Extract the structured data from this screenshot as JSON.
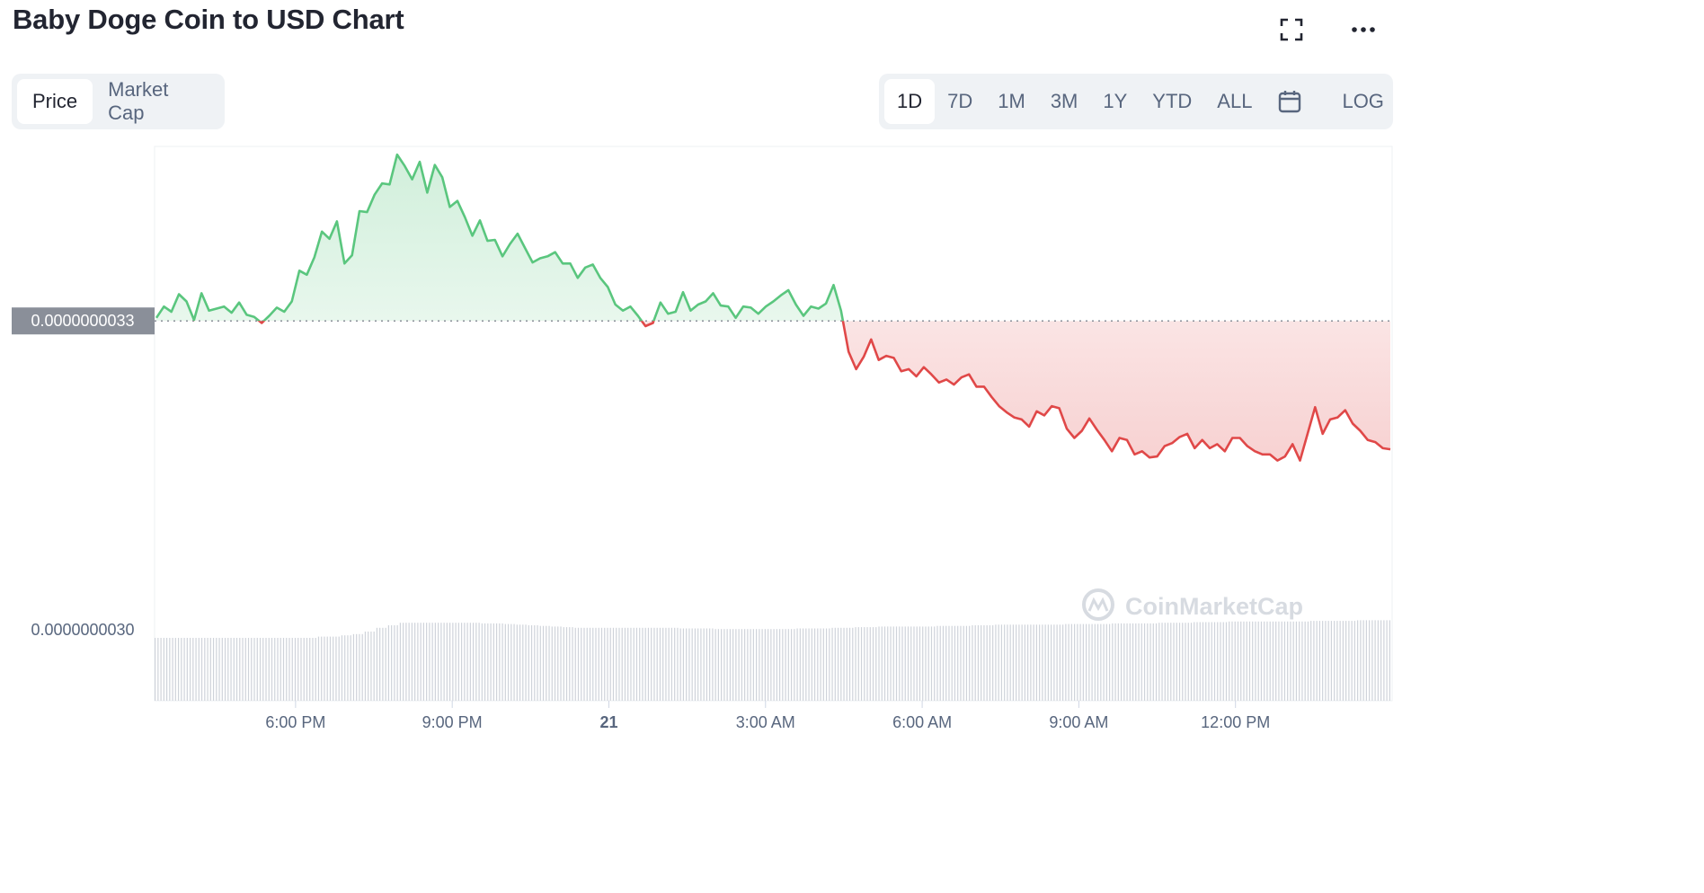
{
  "title": "Baby Doge Coin to USD Chart",
  "icons": {
    "fullscreen": "fullscreen-icon",
    "more": "more-icon",
    "calendar": "calendar-icon"
  },
  "metric_tabs": [
    {
      "label": "Price",
      "active": true
    },
    {
      "label": "Market Cap",
      "active": false
    }
  ],
  "range_tabs": [
    {
      "label": "1D",
      "active": true
    },
    {
      "label": "7D",
      "active": false
    },
    {
      "label": "1M",
      "active": false
    },
    {
      "label": "3M",
      "active": false
    },
    {
      "label": "1Y",
      "active": false
    },
    {
      "label": "YTD",
      "active": false
    },
    {
      "label": "ALL",
      "active": false
    }
  ],
  "log_label": "LOG",
  "watermark": "CoinMarketCap",
  "colors": {
    "up": "#5ac67e",
    "down": "#e04848",
    "reference": "#8a8f99",
    "volume": "#cfd3da"
  },
  "chart_data": {
    "type": "area",
    "title": "",
    "reference_value": 3.3e-09,
    "reference_label": "0.0000000033",
    "y_tick_labels": [
      "0.0000000030"
    ],
    "x_tick_labels": [
      "6:00 PM",
      "9:00 PM",
      "21",
      "3:00 AM",
      "6:00 AM",
      "9:00 AM",
      "12:00 PM"
    ],
    "x_start_hour": 15.3,
    "x_end_hour": 39.0,
    "ylim": [
      2.93e-09,
      3.47e-09
    ],
    "series": [
      {
        "values": [
          3.303,
          3.314,
          3.309,
          3.326,
          3.319,
          3.301,
          3.327,
          3.31,
          3.312,
          3.314,
          3.308,
          3.318,
          3.306,
          3.304,
          3.298,
          3.305,
          3.313,
          3.309,
          3.319,
          3.349,
          3.345,
          3.362,
          3.387,
          3.38,
          3.397,
          3.356,
          3.364,
          3.407,
          3.406,
          3.423,
          3.434,
          3.433,
          3.462,
          3.451,
          3.438,
          3.455,
          3.425,
          3.452,
          3.44,
          3.411,
          3.417,
          3.401,
          3.383,
          3.398,
          3.378,
          3.379,
          3.363,
          3.375,
          3.385,
          3.371,
          3.357,
          3.361,
          3.363,
          3.367,
          3.356,
          3.356,
          3.342,
          3.352,
          3.355,
          3.342,
          3.333,
          3.316,
          3.31,
          3.314,
          3.305,
          3.295,
          3.298,
          3.318,
          3.307,
          3.309,
          3.328,
          3.31,
          3.316,
          3.319,
          3.327,
          3.315,
          3.314,
          3.303,
          3.314,
          3.313,
          3.307,
          3.314,
          3.319,
          3.325,
          3.33,
          3.316,
          3.305,
          3.314,
          3.312,
          3.317,
          3.335,
          3.31,
          3.27,
          3.253,
          3.265,
          3.282,
          3.262,
          3.266,
          3.264,
          3.251,
          3.253,
          3.246,
          3.255,
          3.248,
          3.24,
          3.243,
          3.238,
          3.245,
          3.248,
          3.236,
          3.236,
          3.226,
          3.217,
          3.211,
          3.206,
          3.204,
          3.197,
          3.212,
          3.208,
          3.217,
          3.215,
          3.195,
          3.186,
          3.193,
          3.205,
          3.194,
          3.184,
          3.173,
          3.186,
          3.184,
          3.17,
          3.173,
          3.167,
          3.168,
          3.178,
          3.181,
          3.187,
          3.19,
          3.176,
          3.184,
          3.176,
          3.18,
          3.173,
          3.186,
          3.186,
          3.178,
          3.173,
          3.17,
          3.17,
          3.164,
          3.168,
          3.18,
          3.164,
          3.19,
          3.216,
          3.19,
          3.204,
          3.206,
          3.213,
          3.2,
          3.193,
          3.184,
          3.182,
          3.176,
          3.175
        ]
      }
    ],
    "volume_values": [
      1.0,
      1.0,
      1.0,
      1.0,
      1.0,
      1.0,
      1.0,
      1.0,
      1.0,
      1.0,
      1.0,
      1.0,
      1.0,
      1.0,
      1.02,
      1.02,
      1.04,
      1.06,
      1.1,
      1.16,
      1.2,
      1.24,
      1.24,
      1.24,
      1.24,
      1.24,
      1.24,
      1.24,
      1.23,
      1.23,
      1.22,
      1.21,
      1.2,
      1.19,
      1.18,
      1.17,
      1.16,
      1.16,
      1.16,
      1.16,
      1.16,
      1.16,
      1.16,
      1.16,
      1.16,
      1.15,
      1.15,
      1.15,
      1.14,
      1.14,
      1.14,
      1.14,
      1.14,
      1.14,
      1.14,
      1.15,
      1.15,
      1.15,
      1.16,
      1.16,
      1.17,
      1.17,
      1.18,
      1.18,
      1.18,
      1.18,
      1.18,
      1.19,
      1.19,
      1.19,
      1.2,
      1.2,
      1.21,
      1.21,
      1.21,
      1.21,
      1.21,
      1.21,
      1.22,
      1.22,
      1.22,
      1.22,
      1.23,
      1.23,
      1.23,
      1.23,
      1.24,
      1.24,
      1.24,
      1.25,
      1.25,
      1.25,
      1.26,
      1.26,
      1.26,
      1.26,
      1.26,
      1.26,
      1.26,
      1.27,
      1.27,
      1.27,
      1.27,
      1.28,
      1.28,
      1.28
    ]
  }
}
